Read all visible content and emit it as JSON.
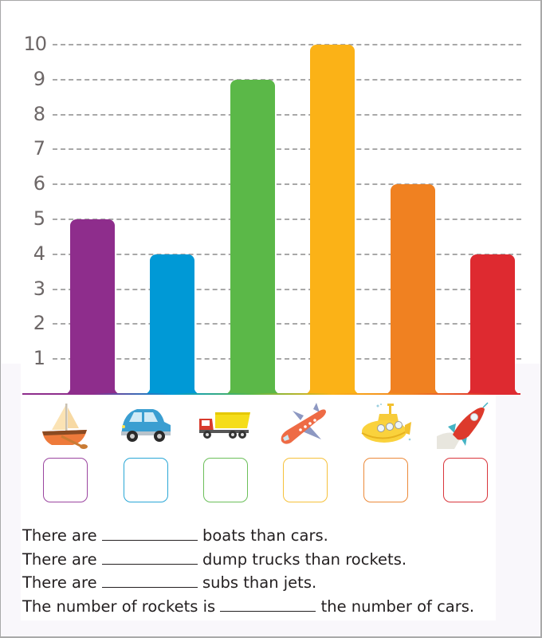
{
  "chart_data": {
    "type": "bar",
    "title": "",
    "xlabel": "",
    "ylabel": "",
    "ylim": [
      0,
      10
    ],
    "yticks": [
      1,
      2,
      3,
      4,
      5,
      6,
      7,
      8,
      9,
      10
    ],
    "grid": "horizontal dashed",
    "legend": "none (categories shown as pictures below bars)",
    "categories": [
      "boat",
      "car",
      "dump truck",
      "jet",
      "sub",
      "rocket"
    ],
    "values": [
      5,
      4,
      9,
      10,
      6,
      4
    ],
    "colors": [
      "#8e2d8c",
      "#0099d6",
      "#5bb848",
      "#fbb217",
      "#f08121",
      "#de2a30"
    ]
  },
  "y_axis": {
    "labels": [
      "10",
      "9",
      "8",
      "7",
      "6",
      "5",
      "4",
      "3",
      "2",
      "1"
    ]
  },
  "pictures": [
    {
      "name": "boat",
      "icon": "sailboat-icon",
      "box_color": "#9b45a0"
    },
    {
      "name": "car",
      "icon": "car-icon",
      "box_color": "#2aa7d6"
    },
    {
      "name": "dump truck",
      "icon": "dump-truck-icon",
      "box_color": "#6cbf5a"
    },
    {
      "name": "jet",
      "icon": "airplane-icon",
      "box_color": "#f6c13b"
    },
    {
      "name": "sub",
      "icon": "submarine-icon",
      "box_color": "#ec8a3a"
    },
    {
      "name": "rocket",
      "icon": "rocket-icon",
      "box_color": "#d9363c"
    }
  ],
  "sentences": [
    {
      "before": "There are ",
      "after": " boats than cars."
    },
    {
      "before": "There are ",
      "after": " dump trucks than rockets."
    },
    {
      "before": "There are ",
      "after": " subs than jets."
    },
    {
      "before": "The number of rockets is ",
      "after": " the number of cars."
    }
  ]
}
